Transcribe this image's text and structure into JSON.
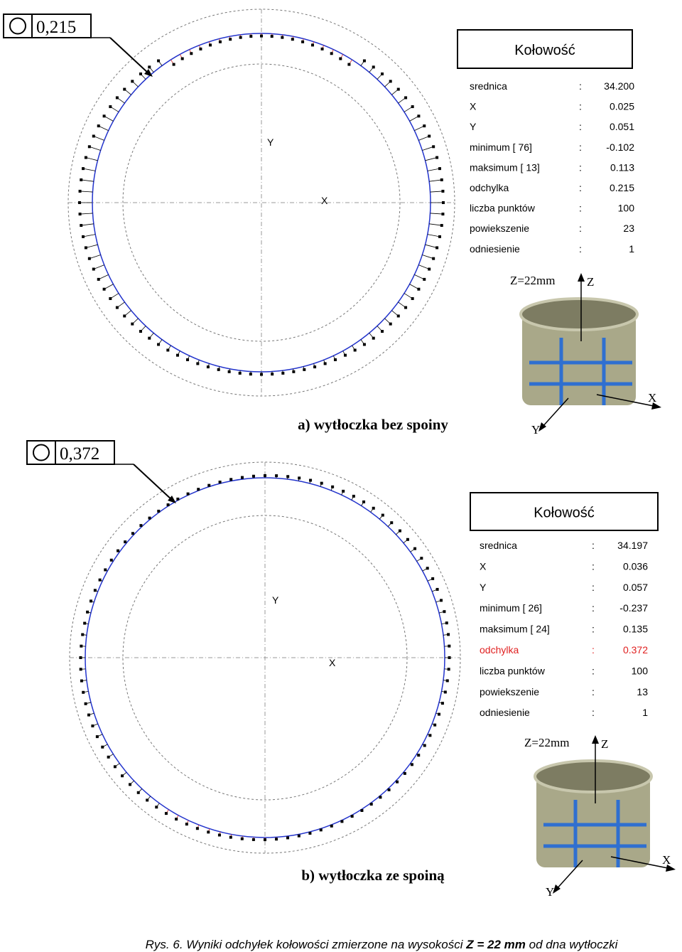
{
  "panels": [
    {
      "tolerance": "0,215",
      "label": "a) wytłoczka bez spoiny",
      "table_title": "Kołowość",
      "axis_x": "X",
      "axis_y": "Y",
      "photo_label": "Z=22mm",
      "photo_axes": [
        "Z",
        "X",
        "Y"
      ],
      "rows": [
        {
          "label": "srednica",
          "sep": ":",
          "value": "34.200"
        },
        {
          "label": "X",
          "sep": ":",
          "value": "0.025"
        },
        {
          "label": "Y",
          "sep": ":",
          "value": "0.051"
        },
        {
          "label": "minimum [  76]",
          "sep": ":",
          "value": "-0.102"
        },
        {
          "label": "maksimum [  13]",
          "sep": ":",
          "value": "0.113"
        },
        {
          "label": "odchylka",
          "sep": ":",
          "value": "0.215"
        },
        {
          "label": "liczba punktów",
          "sep": ":",
          "value": "100"
        },
        {
          "label": "powiekszenie",
          "sep": ":",
          "value": "23"
        },
        {
          "label": "odniesienie",
          "sep": ":",
          "value": "1"
        }
      ]
    },
    {
      "tolerance": "0,372",
      "label": "b) wytłoczka ze spoiną",
      "table_title": "Kołowość",
      "axis_x": "X",
      "axis_y": "Y",
      "photo_label": "Z=22mm",
      "photo_axes": [
        "Z",
        "X",
        "Y"
      ],
      "rows": [
        {
          "label": "srednica",
          "sep": ":",
          "value": "34.197"
        },
        {
          "label": "X",
          "sep": ":",
          "value": "0.036"
        },
        {
          "label": "Y",
          "sep": ":",
          "value": "0.057"
        },
        {
          "label": "minimum [  26]",
          "sep": ":",
          "value": "-0.237"
        },
        {
          "label": "maksimum [  24]",
          "sep": ":",
          "value": "0.135"
        },
        {
          "label": "odchylka",
          "sep": ":",
          "value": "0.372",
          "color": "#e02020"
        },
        {
          "label": "liczba punktów",
          "sep": ":",
          "value": "100"
        },
        {
          "label": "powiekszenie",
          "sep": ":",
          "value": "13"
        },
        {
          "label": "odniesienie",
          "sep": ":",
          "value": "1"
        }
      ]
    }
  ],
  "caption": {
    "start": "Rys. 6. Wyniki odchyłek kołowości zmierzone na wysokości ",
    "bold": "Z = 22  mm",
    "end": " od dna wytłoczki"
  }
}
